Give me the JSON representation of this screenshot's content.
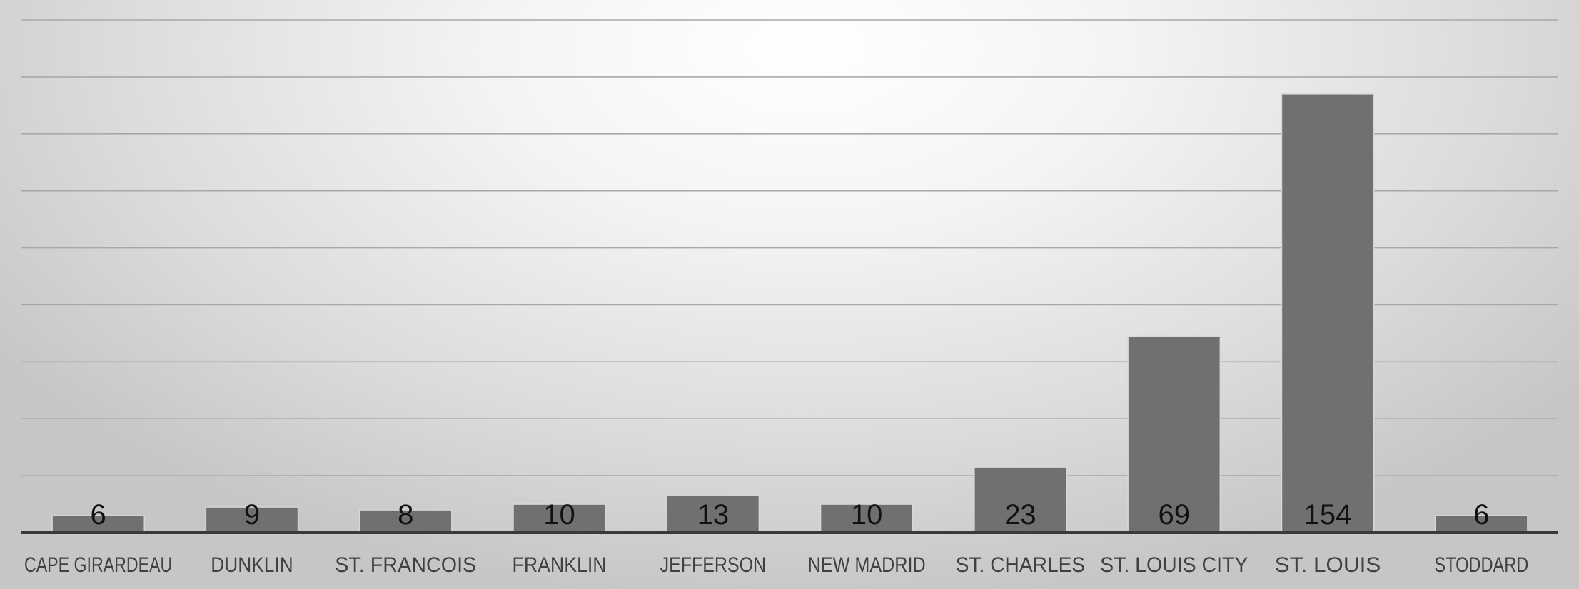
{
  "chart_data": {
    "type": "bar",
    "title": "",
    "xlabel": "",
    "ylabel": "",
    "categories": [
      "CAPE GIRARDEAU",
      "DUNKLIN",
      "ST. FRANCOIS",
      "FRANKLIN",
      "JEFFERSON",
      "NEW MADRID",
      "ST. CHARLES",
      "ST. LOUIS CITY",
      "ST. LOUIS",
      "STODDARD"
    ],
    "values": [
      6,
      9,
      8,
      10,
      13,
      10,
      23,
      69,
      154,
      6
    ],
    "ylim": [
      0,
      180
    ],
    "y_gridline_step": 20,
    "y_tick_labels_shown": false,
    "grid": true,
    "data_labels": true,
    "legend": "none",
    "colors": {
      "bar": "#707070",
      "gridline": "#a8a8a8",
      "axis": "#3a3a3a",
      "data_label": "#111111",
      "tick_label": "#404040"
    }
  }
}
